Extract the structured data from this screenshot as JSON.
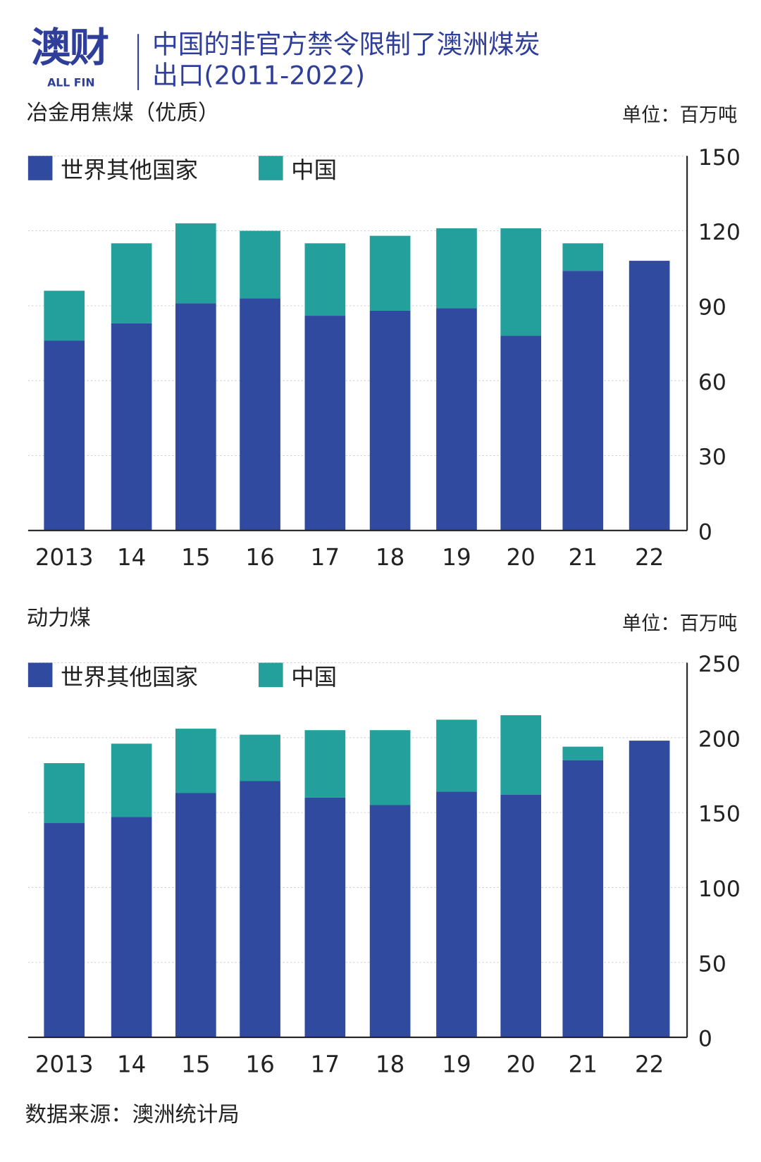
{
  "header": {
    "logo_cn": "澳财",
    "logo_en": "ALL FIN",
    "title_line1": "中国的非官方禁令限制了澳洲煤炭",
    "title_line2": "出口(2011-2022)"
  },
  "footer": {
    "source": "数据来源：澳洲统计局"
  },
  "colors": {
    "world": "#2f4a9e",
    "china": "#23a09c",
    "title": "#2f3f99"
  },
  "chart_data": [
    {
      "type": "bar",
      "stacked": true,
      "title": "冶金用焦煤（优质）",
      "unit": "单位：百万吨",
      "categories": [
        "2013",
        "14",
        "15",
        "16",
        "17",
        "18",
        "19",
        "20",
        "21",
        "22"
      ],
      "series": [
        {
          "name": "世界其他国家",
          "values": [
            76,
            83,
            91,
            93,
            86,
            88,
            89,
            78,
            104,
            108
          ]
        },
        {
          "name": "中国",
          "values": [
            20,
            32,
            32,
            27,
            29,
            30,
            32,
            43,
            11,
            0
          ]
        }
      ],
      "yticks": [
        0,
        30,
        60,
        90,
        120,
        150
      ],
      "ylim": [
        0,
        150
      ],
      "yaxis_position": "right",
      "grid": true,
      "legend": "top-left"
    },
    {
      "type": "bar",
      "stacked": true,
      "title": "动力煤",
      "unit": "单位：百万吨",
      "categories": [
        "2013",
        "14",
        "15",
        "16",
        "17",
        "18",
        "19",
        "20",
        "21",
        "22"
      ],
      "series": [
        {
          "name": "世界其他国家",
          "values": [
            143,
            147,
            163,
            171,
            160,
            155,
            164,
            162,
            185,
            198
          ]
        },
        {
          "name": "中国",
          "values": [
            40,
            49,
            43,
            31,
            45,
            50,
            48,
            53,
            9,
            0
          ]
        }
      ],
      "yticks": [
        0,
        50,
        100,
        150,
        200,
        250
      ],
      "ylim": [
        0,
        250
      ],
      "yaxis_position": "right",
      "grid": true,
      "legend": "top-left"
    }
  ]
}
